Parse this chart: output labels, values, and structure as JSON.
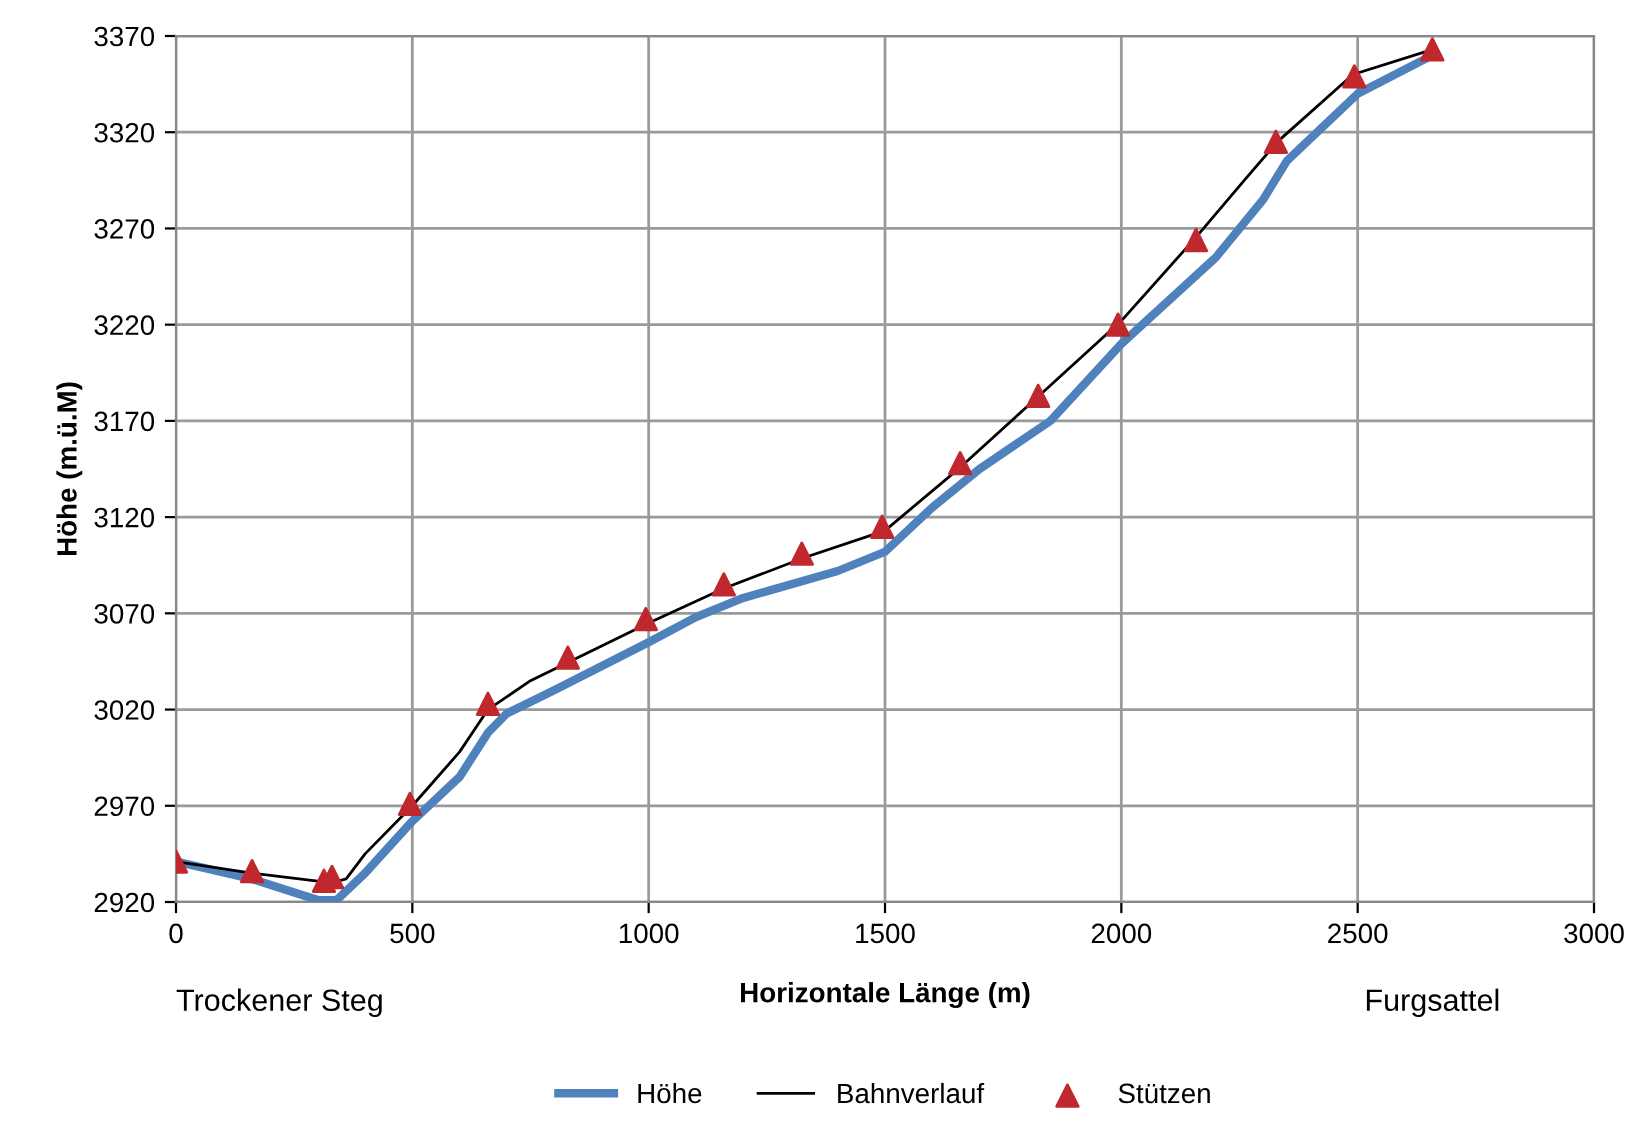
{
  "chart_data": {
    "type": "line",
    "xlabel": "Horizontale Länge (m)",
    "ylabel": "Höhe (m.ü.M)",
    "xlim": [
      0,
      3000
    ],
    "xticks": [
      0,
      500,
      1000,
      1500,
      2000,
      2500,
      3000
    ],
    "ylim": [
      2920,
      3370
    ],
    "yticks": [
      2920,
      2970,
      3020,
      3070,
      3120,
      3170,
      3220,
      3270,
      3320,
      3370
    ],
    "grid": true,
    "legend": "bottom",
    "annotations": [
      "Trockener Steg",
      "Furgsattel"
    ],
    "series": [
      {
        "name": "Höhe",
        "color": "#4f81bd",
        "marker": "none",
        "x": [
          0,
          160,
          300,
          340,
          400,
          500,
          600,
          660,
          700,
          800,
          1000,
          1100,
          1200,
          1400,
          1500,
          1600,
          1700,
          1850,
          2000,
          2200,
          2300,
          2350,
          2500,
          2658
        ],
        "values": [
          2941,
          2932,
          2921,
          2921,
          2935,
          2962,
          2985,
          3008,
          3018,
          3030,
          3055,
          3068,
          3078,
          3092,
          3102,
          3125,
          3145,
          3170,
          3210,
          3255,
          3285,
          3305,
          3340,
          3360
        ]
      },
      {
        "name": "Bahnverlauf",
        "color": "#000000",
        "marker": "none",
        "x": [
          0,
          160,
          330,
          360,
          400,
          500,
          600,
          660,
          750,
          1000,
          1160,
          1330,
          1500,
          1660,
          1830,
          2000,
          2160,
          2260,
          2330,
          2490,
          2658
        ],
        "values": [
          2941,
          2935,
          2930,
          2932,
          2945,
          2970,
          2998,
          3020,
          3035,
          3065,
          3083,
          3099,
          3113,
          3146,
          3184,
          3222,
          3266,
          3295,
          3315,
          3350,
          3363
        ]
      },
      {
        "name": "Stützen",
        "type": "scatter",
        "color": "#c0282d",
        "marker": "triangle",
        "x": [
          0,
          161,
          313,
          330,
          495,
          660,
          829,
          994,
          1159,
          1324,
          1494,
          1659,
          1824,
          1993,
          2158,
          2327,
          2493,
          2658
        ],
        "values": [
          2941,
          2936,
          2931,
          2933,
          2971,
          3023,
          3047,
          3067,
          3085,
          3101,
          3115,
          3148,
          3183,
          3220,
          3264,
          3315,
          3349,
          3363
        ]
      }
    ]
  }
}
